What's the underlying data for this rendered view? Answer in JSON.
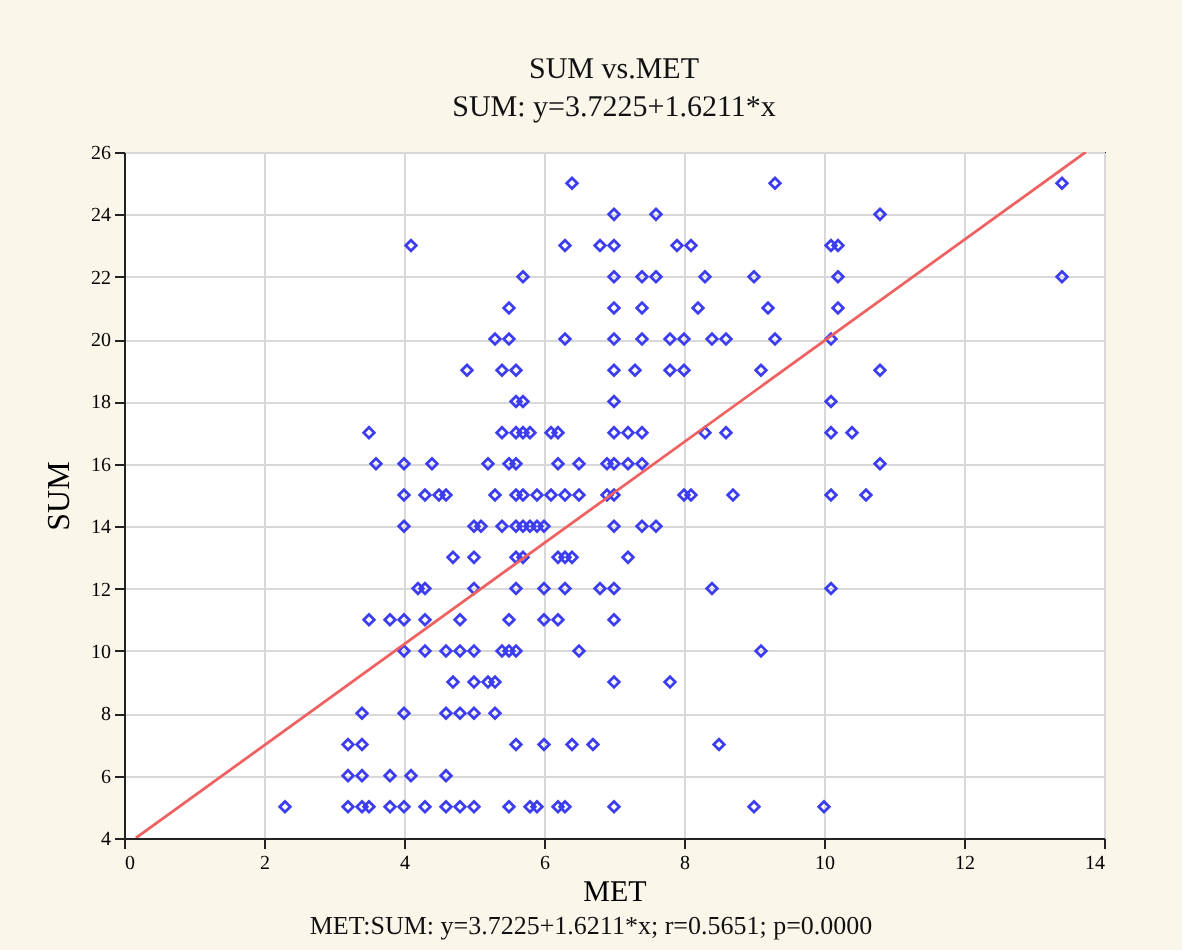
{
  "chart_data": {
    "type": "scatter",
    "title": "SUM vs.MET",
    "subtitle": "SUM: y=3.7225+1.6211*x",
    "xlabel": "MET",
    "ylabel": "SUM",
    "annotations": [
      "MET:SUM: y=3.7225+1.6211*x; r=0.5651; p=0.0000"
    ],
    "xlim": [
      0,
      14
    ],
    "xticks": [
      0,
      2,
      4,
      6,
      8,
      10,
      12,
      14
    ],
    "ylim": [
      4,
      26
    ],
    "yticks": [
      4,
      6,
      8,
      10,
      12,
      14,
      16,
      18,
      20,
      22,
      24,
      26
    ],
    "grid": true,
    "marker": "diamond",
    "series": [
      {
        "type": "scatter",
        "color": "#3c3cf0",
        "x": [
          6.4,
          9.3,
          13.4,
          7.0,
          7.6,
          10.8,
          4.1,
          6.3,
          6.8,
          7.0,
          7.9,
          8.1,
          10.1,
          10.2,
          5.7,
          7.0,
          7.4,
          7.6,
          8.3,
          9.0,
          10.2,
          13.4,
          5.5,
          7.0,
          7.4,
          8.2,
          9.2,
          10.2,
          5.3,
          5.5,
          6.3,
          7.0,
          7.4,
          7.8,
          8.0,
          8.4,
          8.6,
          9.3,
          10.1,
          4.9,
          5.4,
          5.6,
          7.0,
          7.3,
          7.8,
          8.0,
          9.1,
          10.8,
          5.6,
          5.7,
          7.0,
          10.1,
          3.5,
          5.4,
          5.6,
          5.7,
          5.8,
          6.1,
          6.2,
          7.0,
          7.2,
          7.4,
          8.3,
          8.6,
          10.1,
          10.4,
          3.6,
          4.0,
          4.4,
          5.2,
          5.5,
          5.6,
          6.2,
          6.5,
          6.9,
          7.0,
          7.2,
          7.4,
          10.8,
          4.0,
          4.3,
          4.5,
          4.6,
          5.3,
          5.6,
          5.7,
          5.9,
          6.1,
          6.3,
          6.5,
          6.9,
          7.0,
          8.0,
          8.1,
          8.7,
          10.1,
          10.6,
          4.0,
          5.0,
          5.1,
          5.4,
          5.6,
          5.7,
          5.8,
          5.9,
          6.0,
          7.0,
          7.4,
          7.6,
          4.7,
          5.0,
          5.6,
          5.7,
          6.2,
          6.3,
          6.4,
          7.2,
          4.2,
          4.3,
          5.0,
          5.6,
          6.0,
          6.3,
          6.8,
          7.0,
          8.4,
          10.1,
          3.5,
          3.8,
          4.0,
          4.3,
          4.8,
          5.5,
          6.0,
          6.2,
          7.0,
          4.0,
          4.3,
          4.6,
          4.8,
          5.0,
          5.4,
          5.5,
          5.6,
          6.5,
          9.1,
          4.7,
          5.0,
          5.2,
          5.3,
          7.0,
          7.8,
          3.4,
          4.0,
          4.6,
          4.8,
          5.0,
          5.3,
          3.2,
          3.4,
          5.6,
          6.0,
          6.4,
          6.7,
          8.5,
          3.2,
          3.4,
          3.8,
          4.1,
          4.6,
          2.3,
          3.2,
          3.4,
          3.5,
          3.8,
          4.0,
          4.3,
          4.6,
          4.8,
          5.0,
          5.5,
          5.8,
          5.9,
          6.2,
          6.3,
          7.0,
          9.0,
          10.0
        ],
        "values": [
          25,
          25,
          25,
          24,
          24,
          24,
          23,
          23,
          23,
          23,
          23,
          23,
          23,
          23,
          22,
          22,
          22,
          22,
          22,
          22,
          22,
          22,
          21,
          21,
          21,
          21,
          21,
          21,
          20,
          20,
          20,
          20,
          20,
          20,
          20,
          20,
          20,
          20,
          20,
          19,
          19,
          19,
          19,
          19,
          19,
          19,
          19,
          19,
          18,
          18,
          18,
          18,
          17,
          17,
          17,
          17,
          17,
          17,
          17,
          17,
          17,
          17,
          17,
          17,
          17,
          17,
          16,
          16,
          16,
          16,
          16,
          16,
          16,
          16,
          16,
          16,
          16,
          16,
          16,
          15,
          15,
          15,
          15,
          15,
          15,
          15,
          15,
          15,
          15,
          15,
          15,
          15,
          15,
          15,
          15,
          15,
          15,
          14,
          14,
          14,
          14,
          14,
          14,
          14,
          14,
          14,
          14,
          14,
          14,
          13,
          13,
          13,
          13,
          13,
          13,
          13,
          13,
          12,
          12,
          12,
          12,
          12,
          12,
          12,
          12,
          12,
          12,
          11,
          11,
          11,
          11,
          11,
          11,
          11,
          11,
          11,
          10,
          10,
          10,
          10,
          10,
          10,
          10,
          10,
          10,
          10,
          9,
          9,
          9,
          9,
          9,
          9,
          8,
          8,
          8,
          8,
          8,
          8,
          7,
          7,
          7,
          7,
          7,
          7,
          7,
          6,
          6,
          6,
          6,
          6,
          5,
          5,
          5,
          5,
          5,
          5,
          5,
          5,
          5,
          5,
          5,
          5,
          5,
          5,
          5,
          5,
          5,
          5
        ]
      },
      {
        "type": "line",
        "marker": "none",
        "color": "#f06060",
        "x": [
          0.17,
          13.74
        ],
        "values": [
          4,
          26
        ]
      }
    ]
  }
}
